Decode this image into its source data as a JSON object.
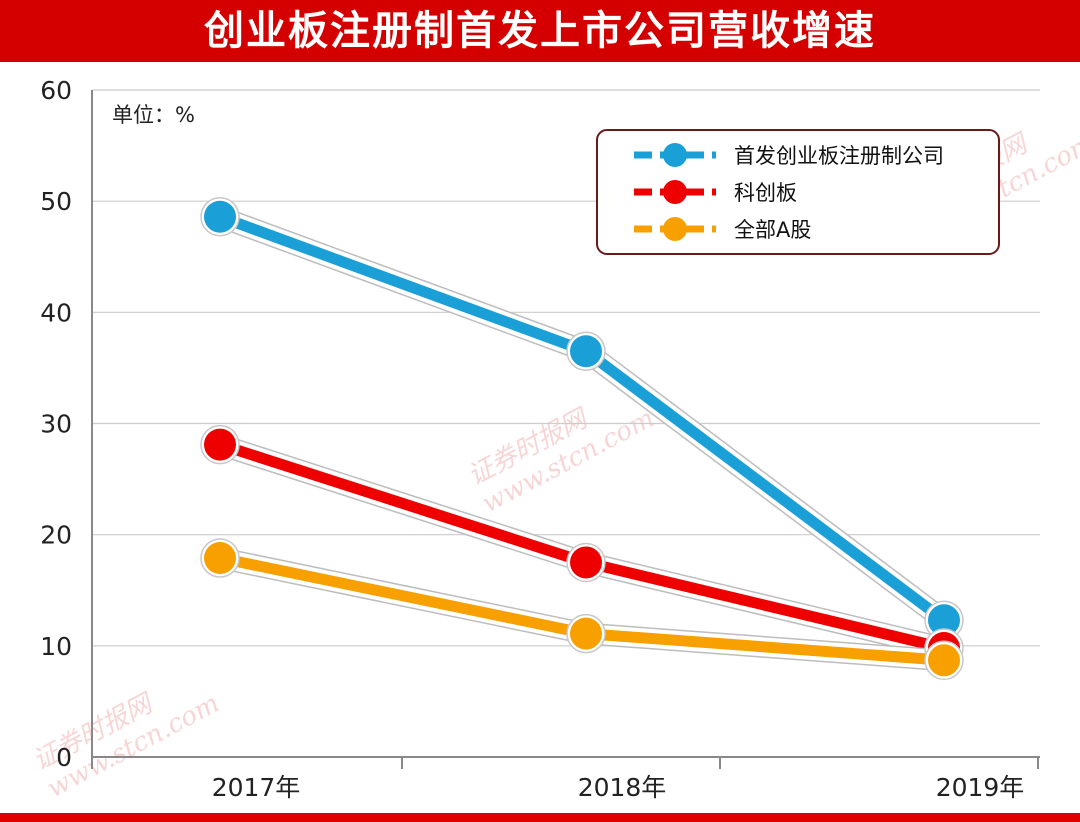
{
  "title": "创业板注册制首发上市公司营收增速",
  "unit_label": "单位：%",
  "watermark": [
    "证券时报网",
    "www.stcn.com"
  ],
  "colors": {
    "title_bg": "#d40000",
    "grid": "#cccccc",
    "axis": "#888888",
    "legend_border": "#6b1a1a"
  },
  "chart_data": {
    "type": "line",
    "title": "创业板注册制首发上市公司营收增速",
    "xlabel": "",
    "ylabel": "单位：%",
    "categories": [
      "2017年",
      "2018年",
      "2019年"
    ],
    "yticks": [
      "0",
      "10",
      "20",
      "30",
      "40",
      "50",
      "60"
    ],
    "ylim": [
      0,
      60
    ],
    "grid": true,
    "legend_position": "top-right",
    "series": [
      {
        "name": "首发创业板注册制公司",
        "color": "#1a9fd6",
        "values": [
          48.6,
          36.5,
          12.3
        ]
      },
      {
        "name": "科创板",
        "color": "#ee0000",
        "values": [
          28.1,
          17.5,
          9.8
        ]
      },
      {
        "name": "全部A股",
        "color": "#f7a000",
        "values": [
          17.9,
          11.1,
          8.7
        ]
      }
    ]
  }
}
